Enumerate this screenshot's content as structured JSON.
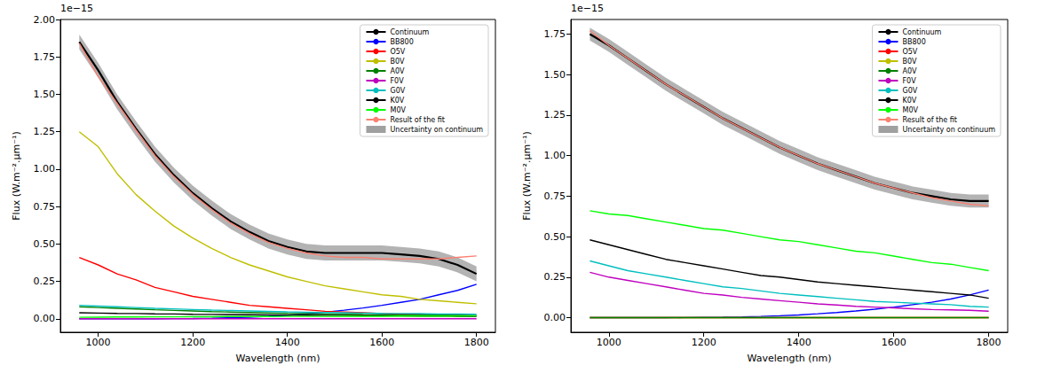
{
  "chart_data": [
    {
      "type": "line",
      "x_label": "Wavelength (nm)",
      "y_label": "Flux (W.m⁻².μm⁻¹)",
      "y_scale_text": "1e−15",
      "grid": false,
      "legend": "upper right",
      "xlim": [
        920,
        1840
      ],
      "xticks": [
        1000,
        1200,
        1400,
        1600,
        1800
      ],
      "ylim": [
        -0.09,
        2.0
      ],
      "yticks": [
        {
          "value": 0,
          "label": "0.00"
        },
        {
          "value": 0.25,
          "label": "0.25"
        },
        {
          "value": 0.5,
          "label": "0.50"
        },
        {
          "value": 0.75,
          "label": "0.75"
        },
        {
          "value": 1.0,
          "label": "1.00"
        },
        {
          "value": 1.25,
          "label": "1.25"
        },
        {
          "value": 1.5,
          "label": "1.50"
        },
        {
          "value": 1.75,
          "label": "1.75"
        },
        {
          "value": 2.0,
          "label": "2.00"
        }
      ],
      "x": [
        960,
        1000,
        1040,
        1080,
        1120,
        1160,
        1200,
        1240,
        1280,
        1320,
        1360,
        1400,
        1440,
        1480,
        1520,
        1560,
        1600,
        1640,
        1680,
        1720,
        1760,
        1800
      ],
      "series": [
        {
          "name": "Continuum",
          "color": "#000000",
          "values": [
            1.85,
            1.66,
            1.45,
            1.27,
            1.1,
            0.96,
            0.84,
            0.74,
            0.65,
            0.58,
            0.52,
            0.48,
            0.45,
            0.44,
            0.44,
            0.44,
            0.44,
            0.43,
            0.42,
            0.4,
            0.36,
            0.3
          ]
        },
        {
          "name": "BB800",
          "color": "#0000ff",
          "values": [
            0,
            0,
            0,
            0,
            0,
            0.001,
            0.002,
            0.004,
            0.007,
            0.011,
            0.017,
            0.024,
            0.033,
            0.044,
            0.057,
            0.072,
            0.09,
            0.11,
            0.13,
            0.16,
            0.19,
            0.23
          ]
        },
        {
          "name": "O5V",
          "color": "#ff0000",
          "values": [
            0.41,
            0.36,
            0.3,
            0.26,
            0.21,
            0.18,
            0.15,
            0.13,
            0.11,
            0.09,
            0.08,
            0.07,
            0.06,
            0.05,
            0.045,
            0.04,
            0.035,
            0.03,
            0.03,
            0.025,
            0.025,
            0.02
          ]
        },
        {
          "name": "B0V",
          "color": "#bfbf00",
          "values": [
            1.25,
            1.15,
            0.97,
            0.83,
            0.72,
            0.62,
            0.54,
            0.47,
            0.41,
            0.36,
            0.32,
            0.28,
            0.25,
            0.22,
            0.2,
            0.18,
            0.16,
            0.15,
            0.13,
            0.12,
            0.11,
            0.1
          ]
        },
        {
          "name": "A0V",
          "color": "#008000",
          "values": [
            0.08,
            0.075,
            0.07,
            0.065,
            0.06,
            0.056,
            0.052,
            0.048,
            0.045,
            0.042,
            0.039,
            0.036,
            0.034,
            0.032,
            0.03,
            0.028,
            0.027,
            0.026,
            0.025,
            0.024,
            0.023,
            0.022
          ]
        },
        {
          "name": "F0V",
          "color": "#bf00bf",
          "values": [
            0,
            0,
            0,
            0,
            0,
            0,
            0,
            0,
            0,
            0,
            0,
            0,
            0,
            0,
            0,
            0,
            0,
            0,
            0,
            0,
            0,
            0
          ]
        },
        {
          "name": "G0V",
          "color": "#00bfbf",
          "values": [
            0.09,
            0.085,
            0.08,
            0.075,
            0.07,
            0.066,
            0.062,
            0.058,
            0.055,
            0.052,
            0.049,
            0.046,
            0.044,
            0.042,
            0.04,
            0.038,
            0.036,
            0.035,
            0.034,
            0.032,
            0.031,
            0.03
          ]
        },
        {
          "name": "K0V",
          "color": "#000000",
          "values": [
            0.04,
            0.038,
            0.036,
            0.035,
            0.033,
            0.032,
            0.03,
            0.029,
            0.028,
            0.027,
            0.026,
            0.025,
            0.024,
            0.023,
            0.022,
            0.021,
            0.02,
            0.019,
            0.018,
            0.018,
            0.017,
            0.016
          ]
        },
        {
          "name": "M0V",
          "color": "#00ff00",
          "values": [
            0.01,
            0.011,
            0.012,
            0.012,
            0.013,
            0.013,
            0.014,
            0.014,
            0.015,
            0.015,
            0.015,
            0.016,
            0.016,
            0.016,
            0.017,
            0.017,
            0.017,
            0.018,
            0.018,
            0.018,
            0.018,
            0.019
          ]
        },
        {
          "name": "Result of the fit",
          "color": "#fa8072",
          "values": [
            1.84,
            1.62,
            1.44,
            1.26,
            1.09,
            0.95,
            0.83,
            0.73,
            0.64,
            0.57,
            0.51,
            0.47,
            0.44,
            0.42,
            0.41,
            0.41,
            0.4,
            0.4,
            0.4,
            0.4,
            0.41,
            0.42
          ]
        },
        {
          "name": "Uncertainty on continuum",
          "color": "#a0a0a0",
          "type": "band",
          "lower": [
            1.8,
            1.61,
            1.4,
            1.22,
            1.05,
            0.91,
            0.79,
            0.69,
            0.6,
            0.53,
            0.47,
            0.43,
            0.4,
            0.39,
            0.39,
            0.39,
            0.39,
            0.38,
            0.37,
            0.35,
            0.31,
            0.25
          ],
          "upper": [
            1.9,
            1.71,
            1.5,
            1.32,
            1.15,
            1.01,
            0.89,
            0.79,
            0.7,
            0.63,
            0.57,
            0.53,
            0.5,
            0.49,
            0.49,
            0.49,
            0.49,
            0.48,
            0.47,
            0.45,
            0.41,
            0.35
          ]
        }
      ]
    },
    {
      "type": "line",
      "x_label": "Wavelength (nm)",
      "y_label": "Flux (W.m⁻².μm⁻¹)",
      "y_scale_text": "1e−15",
      "grid": false,
      "legend": "upper right",
      "xlim": [
        920,
        1840
      ],
      "xticks": [
        1000,
        1200,
        1400,
        1600,
        1800
      ],
      "ylim": [
        -0.09,
        1.84
      ],
      "yticks": [
        {
          "value": 0,
          "label": "0.00"
        },
        {
          "value": 0.25,
          "label": "0.25"
        },
        {
          "value": 0.5,
          "label": "0.50"
        },
        {
          "value": 0.75,
          "label": "0.75"
        },
        {
          "value": 1.0,
          "label": "1.00"
        },
        {
          "value": 1.25,
          "label": "1.25"
        },
        {
          "value": 1.5,
          "label": "1.50"
        },
        {
          "value": 1.75,
          "label": "1.75"
        }
      ],
      "x": [
        960,
        1000,
        1040,
        1080,
        1120,
        1160,
        1200,
        1240,
        1280,
        1320,
        1360,
        1400,
        1440,
        1480,
        1520,
        1560,
        1600,
        1640,
        1680,
        1720,
        1760,
        1800
      ],
      "series": [
        {
          "name": "Continuum",
          "color": "#000000",
          "values": [
            1.75,
            1.68,
            1.6,
            1.52,
            1.44,
            1.37,
            1.3,
            1.23,
            1.17,
            1.11,
            1.05,
            1.0,
            0.95,
            0.91,
            0.87,
            0.83,
            0.8,
            0.77,
            0.75,
            0.73,
            0.72,
            0.72
          ]
        },
        {
          "name": "BB800",
          "color": "#0000ff",
          "values": [
            0,
            0,
            0,
            0,
            0,
            0.001,
            0.002,
            0.003,
            0.005,
            0.008,
            0.012,
            0.017,
            0.024,
            0.032,
            0.041,
            0.052,
            0.065,
            0.08,
            0.095,
            0.115,
            0.14,
            0.17
          ]
        },
        {
          "name": "O5V",
          "color": "#ff0000",
          "values": [
            0,
            0,
            0,
            0,
            0,
            0,
            0,
            0,
            0,
            0,
            0,
            0,
            0,
            0,
            0,
            0,
            0,
            0,
            0,
            0,
            0,
            0
          ]
        },
        {
          "name": "B0V",
          "color": "#bfbf00",
          "values": [
            0,
            0,
            0,
            0,
            0,
            0,
            0,
            0,
            0,
            0,
            0,
            0,
            0,
            0,
            0,
            0,
            0,
            0,
            0,
            0,
            0,
            0
          ]
        },
        {
          "name": "A0V",
          "color": "#008000",
          "values": [
            0,
            0,
            0,
            0,
            0,
            0,
            0,
            0,
            0,
            0,
            0,
            0,
            0,
            0,
            0,
            0,
            0,
            0,
            0,
            0,
            0,
            0
          ]
        },
        {
          "name": "F0V",
          "color": "#bf00bf",
          "values": [
            0.28,
            0.25,
            0.23,
            0.21,
            0.19,
            0.17,
            0.15,
            0.14,
            0.125,
            0.115,
            0.105,
            0.095,
            0.085,
            0.078,
            0.07,
            0.065,
            0.06,
            0.055,
            0.05,
            0.048,
            0.045,
            0.04
          ]
        },
        {
          "name": "G0V",
          "color": "#00bfbf",
          "values": [
            0.35,
            0.32,
            0.29,
            0.27,
            0.25,
            0.23,
            0.21,
            0.19,
            0.18,
            0.165,
            0.15,
            0.14,
            0.13,
            0.12,
            0.11,
            0.1,
            0.095,
            0.09,
            0.085,
            0.08,
            0.07,
            0.065
          ]
        },
        {
          "name": "K0V",
          "color": "#000000",
          "values": [
            0.48,
            0.45,
            0.42,
            0.39,
            0.36,
            0.34,
            0.32,
            0.3,
            0.28,
            0.26,
            0.25,
            0.235,
            0.22,
            0.21,
            0.2,
            0.19,
            0.18,
            0.17,
            0.16,
            0.15,
            0.14,
            0.12
          ]
        },
        {
          "name": "M0V",
          "color": "#00ff00",
          "values": [
            0.66,
            0.64,
            0.63,
            0.61,
            0.59,
            0.57,
            0.55,
            0.54,
            0.52,
            0.5,
            0.48,
            0.47,
            0.45,
            0.43,
            0.41,
            0.4,
            0.38,
            0.36,
            0.34,
            0.33,
            0.31,
            0.29
          ]
        },
        {
          "name": "Result of the fit",
          "color": "#fa8072",
          "values": [
            1.77,
            1.68,
            1.6,
            1.52,
            1.44,
            1.37,
            1.3,
            1.23,
            1.17,
            1.11,
            1.05,
            1.0,
            0.95,
            0.91,
            0.87,
            0.83,
            0.8,
            0.77,
            0.74,
            0.72,
            0.7,
            0.69
          ]
        },
        {
          "name": "Uncertainty on continuum",
          "color": "#a0a0a0",
          "type": "band",
          "lower": [
            1.71,
            1.64,
            1.56,
            1.48,
            1.4,
            1.33,
            1.26,
            1.19,
            1.13,
            1.07,
            1.01,
            0.96,
            0.91,
            0.87,
            0.83,
            0.79,
            0.76,
            0.73,
            0.71,
            0.69,
            0.68,
            0.68
          ],
          "upper": [
            1.79,
            1.72,
            1.64,
            1.56,
            1.48,
            1.41,
            1.34,
            1.27,
            1.21,
            1.15,
            1.09,
            1.04,
            0.99,
            0.95,
            0.91,
            0.87,
            0.84,
            0.81,
            0.79,
            0.77,
            0.76,
            0.76
          ]
        }
      ]
    }
  ]
}
